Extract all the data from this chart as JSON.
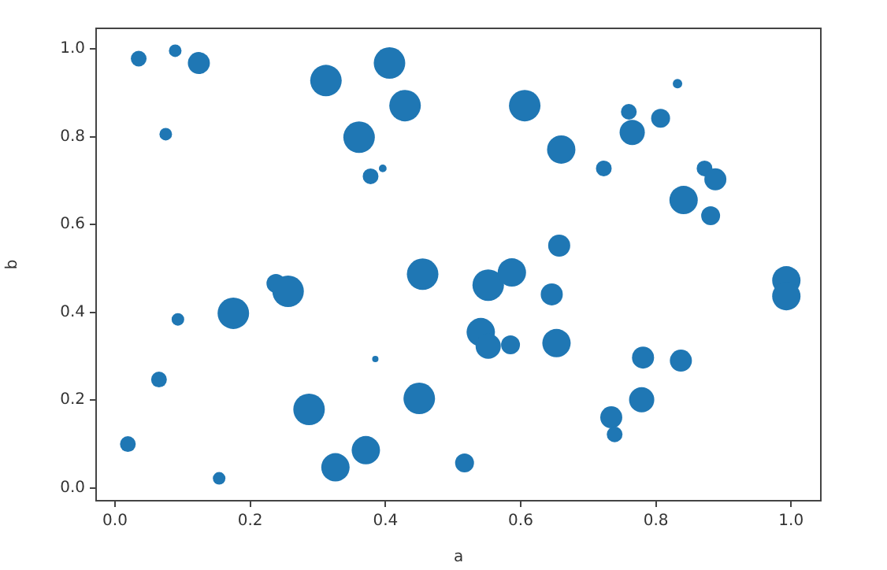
{
  "chart_data": {
    "type": "bubble",
    "xlabel": "a",
    "ylabel": "b",
    "color": "#1f77b4",
    "xlim": [
      -0.028,
      1.044
    ],
    "ylim": [
      -0.029,
      1.047
    ],
    "xticks": [
      {
        "value": 0,
        "label": "0.0"
      },
      0.2,
      0.4,
      0.6,
      0.8,
      {
        "value": 1,
        "label": "1.0"
      }
    ],
    "yticks": [
      {
        "value": 0,
        "label": "0.0"
      },
      0.2,
      0.4,
      0.6,
      0.8,
      {
        "value": 1,
        "label": "1.0"
      }
    ],
    "x": [
      0.035,
      0.089,
      0.124,
      0.075,
      0.312,
      0.406,
      0.429,
      0.361,
      0.378,
      0.396,
      0.606,
      0.66,
      0.832,
      0.76,
      0.807,
      0.765,
      0.723,
      0.872,
      0.888,
      0.841,
      0.881,
      0.657,
      0.455,
      0.238,
      0.256,
      0.175,
      0.093,
      0.552,
      0.587,
      0.646,
      0.993,
      0.993,
      0.541,
      0.552,
      0.585,
      0.653,
      0.385,
      0.781,
      0.837,
      0.065,
      0.287,
      0.45,
      0.779,
      0.734,
      0.739,
      0.019,
      0.371,
      0.326,
      0.517,
      0.154
    ],
    "values": [
      0.978,
      0.996,
      0.968,
      0.806,
      0.928,
      0.968,
      0.871,
      0.799,
      0.71,
      0.728,
      0.871,
      0.771,
      0.921,
      0.857,
      0.842,
      0.81,
      0.728,
      0.728,
      0.703,
      0.656,
      0.62,
      0.552,
      0.487,
      0.466,
      0.448,
      0.398,
      0.384,
      0.462,
      0.491,
      0.441,
      0.473,
      0.437,
      0.355,
      0.323,
      0.326,
      0.33,
      0.294,
      0.297,
      0.29,
      0.247,
      0.179,
      0.204,
      0.201,
      0.161,
      0.122,
      0.1,
      0.086,
      0.047,
      0.057,
      0.022
    ],
    "sizes": [
      0.25,
      0.16,
      0.49,
      0.16,
      1,
      1,
      1,
      1,
      0.25,
      0.06,
      1,
      0.81,
      0.09,
      0.25,
      0.36,
      0.64,
      0.25,
      0.25,
      0.49,
      0.81,
      0.36,
      0.49,
      1,
      0.36,
      1,
      1,
      0.16,
      1,
      0.81,
      0.49,
      0.81,
      0.81,
      0.81,
      0.64,
      0.36,
      0.81,
      0.04,
      0.49,
      0.49,
      0.25,
      1,
      1,
      0.64,
      0.49,
      0.25,
      0.25,
      0.81,
      0.81,
      0.36,
      0.16
    ],
    "grid": false
  }
}
